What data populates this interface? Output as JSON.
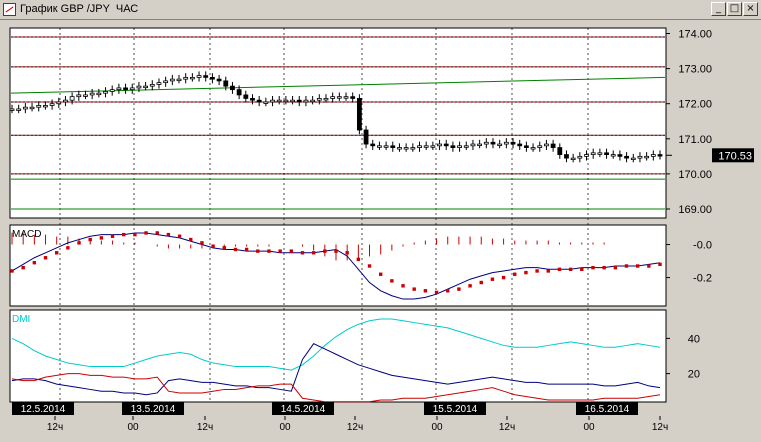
{
  "window": {
    "title": "График GBP /JPY  ЧАС",
    "icon": "chart-icon",
    "buttons": [
      {
        "name": "minimize",
        "glyph": "_"
      },
      {
        "name": "maximize",
        "glyph": "□"
      },
      {
        "name": "close",
        "glyph": "×"
      }
    ]
  },
  "price_panel": {
    "current_price_label": "170.53",
    "y_ticks": [
      "174.00",
      "173.00",
      "172.00",
      "171.00",
      "170.00",
      "169.00"
    ]
  },
  "macd_panel": {
    "title": "MACD",
    "y_ticks": [
      "-0.0",
      "-0.2"
    ]
  },
  "dmi_panel": {
    "title": "DMI",
    "y_ticks": [
      "40",
      "20"
    ]
  },
  "time_axis": {
    "date_labels": [
      "12.5.2014",
      "13.5.2014",
      "14.5.2014",
      "15.5.2014",
      "16.5.2014"
    ],
    "hour_labels": [
      "12ч",
      "00",
      "12ч",
      "00",
      "12ч",
      "00",
      "12ч",
      "00",
      "12ч"
    ]
  },
  "colors": {
    "background": "#ffffff",
    "frame": "#d4d0c8",
    "candles": "#000000",
    "resistance_lines": "#cc0000",
    "support_lines": "#008000",
    "macd_line": "#000080",
    "macd_signal": "#cc0000",
    "dmi_adx": "#00cccc",
    "dmi_plus": "#000080",
    "dmi_minus": "#cc0000"
  },
  "chart_data": [
    {
      "type": "line",
      "panel": "price",
      "ylim": [
        168.8,
        174.1
      ],
      "horizontal_levels_red": [
        173.9,
        173.05,
        172.05,
        171.1,
        170.0
      ],
      "horizontal_levels_green": [
        169.85,
        169.0
      ],
      "trendline_green": {
        "start": 172.3,
        "end": 172.75
      },
      "close": [
        171.85,
        171.85,
        171.9,
        171.9,
        171.95,
        171.95,
        172.0,
        172.05,
        172.1,
        172.2,
        172.25,
        172.25,
        172.3,
        172.3,
        172.35,
        172.4,
        172.45,
        172.4,
        172.45,
        172.5,
        172.5,
        172.55,
        172.6,
        172.65,
        172.7,
        172.7,
        172.75,
        172.75,
        172.8,
        172.75,
        172.7,
        172.65,
        172.5,
        172.4,
        172.25,
        172.15,
        172.1,
        172.05,
        172.05,
        172.1,
        172.1,
        172.1,
        172.1,
        172.05,
        172.1,
        172.1,
        172.15,
        172.15,
        172.2,
        172.2,
        172.2,
        172.15,
        171.25,
        170.85,
        170.8,
        170.8,
        170.8,
        170.75,
        170.75,
        170.75,
        170.75,
        170.8,
        170.8,
        170.8,
        170.85,
        170.8,
        170.75,
        170.8,
        170.8,
        170.85,
        170.85,
        170.9,
        170.85,
        170.85,
        170.9,
        170.85,
        170.8,
        170.75,
        170.75,
        170.8,
        170.85,
        170.75,
        170.55,
        170.45,
        170.45,
        170.5,
        170.55,
        170.6,
        170.6,
        170.55,
        170.55,
        170.5,
        170.45,
        170.45,
        170.5,
        170.5,
        170.55,
        170.53
      ]
    },
    {
      "type": "line",
      "panel": "macd",
      "series": [
        {
          "values": [
            -0.16,
            -0.12,
            -0.08,
            -0.05,
            -0.02,
            0.01,
            0.03,
            0.05,
            0.06,
            0.06,
            0.06,
            0.07,
            0.07,
            0.06,
            0.05,
            0.04,
            0.02,
            0.0,
            -0.02,
            -0.03,
            -0.03,
            -0.04,
            -0.04,
            -0.04,
            -0.05,
            -0.05,
            -0.05,
            -0.05,
            -0.04,
            -0.03,
            -0.07,
            -0.15,
            -0.23,
            -0.28,
            -0.31,
            -0.33,
            -0.33,
            -0.32,
            -0.3,
            -0.27,
            -0.24,
            -0.21,
            -0.19,
            -0.17,
            -0.16,
            -0.15,
            -0.14,
            -0.14,
            -0.15,
            -0.15,
            -0.15,
            -0.14,
            -0.14,
            -0.14,
            -0.13,
            -0.13,
            -0.13,
            -0.12,
            -0.11
          ]
        },
        {
          "values": [
            -0.16,
            -0.14,
            -0.11,
            -0.08,
            -0.05,
            -0.02,
            0.01,
            0.03,
            0.04,
            0.05,
            0.06,
            0.06,
            0.07,
            0.07,
            0.06,
            0.05,
            0.03,
            0.01,
            -0.01,
            -0.02,
            -0.03,
            -0.03,
            -0.04,
            -0.04,
            -0.04,
            -0.04,
            -0.05,
            -0.05,
            -0.04,
            -0.04,
            -0.05,
            -0.09,
            -0.13,
            -0.18,
            -0.22,
            -0.25,
            -0.27,
            -0.28,
            -0.29,
            -0.28,
            -0.27,
            -0.25,
            -0.23,
            -0.21,
            -0.2,
            -0.18,
            -0.17,
            -0.16,
            -0.16,
            -0.15,
            -0.15,
            -0.15,
            -0.14,
            -0.14,
            -0.14,
            -0.13,
            -0.13,
            -0.13,
            -0.12
          ]
        },
        {
          "values": [
            0.06,
            0.06,
            0.05,
            0.05,
            0.04,
            0.04,
            0.03,
            0.03,
            0.02,
            0.02,
            0.01,
            0.01,
            0.0,
            -0.01,
            -0.02,
            -0.02,
            -0.02,
            -0.02,
            -0.02,
            -0.02,
            -0.01,
            -0.01,
            -0.01,
            -0.01,
            0.0,
            0.0,
            -0.01,
            -0.03,
            -0.06,
            -0.08,
            -0.08,
            -0.07,
            -0.06,
            -0.05,
            -0.03,
            -0.01,
            0.01,
            0.02,
            0.03,
            0.04,
            0.04,
            0.04,
            0.04,
            0.03,
            0.03,
            0.02,
            0.02,
            0.02,
            0.02,
            0.01,
            0.01,
            0.01,
            0.01,
            0.01,
            0.0,
            0.0,
            0.0,
            0.0,
            0.0
          ]
        }
      ]
    },
    {
      "type": "line",
      "panel": "dmi",
      "series": [
        {
          "values": [
            40,
            37,
            33,
            30,
            28,
            26,
            25,
            24,
            24,
            24,
            24,
            26,
            28,
            30,
            31,
            32,
            31,
            28,
            26,
            25,
            24,
            24,
            24,
            24,
            23,
            22,
            25,
            30,
            36,
            41,
            45,
            48,
            50,
            51,
            51,
            50,
            49,
            48,
            47,
            46,
            44,
            42,
            40,
            38,
            36,
            35,
            35,
            35,
            36,
            37,
            38,
            37,
            36,
            35,
            35,
            36,
            37,
            36,
            35
          ]
        },
        {
          "values": [
            16,
            17,
            17,
            16,
            14,
            13,
            12,
            11,
            10,
            10,
            9,
            9,
            8,
            9,
            16,
            17,
            16,
            15,
            15,
            14,
            13,
            13,
            12,
            12,
            11,
            10,
            28,
            37,
            34,
            31,
            28,
            25,
            23,
            21,
            19,
            18,
            17,
            16,
            15,
            14,
            15,
            16,
            17,
            18,
            17,
            16,
            15,
            15,
            14,
            14,
            14,
            14,
            14,
            13,
            13,
            14,
            15,
            13,
            12
          ]
        },
        {
          "values": [
            17,
            16,
            16,
            18,
            19,
            20,
            20,
            19,
            19,
            18,
            18,
            17,
            17,
            18,
            10,
            9,
            9,
            9,
            10,
            11,
            11,
            12,
            13,
            13,
            14,
            14,
            6,
            5,
            4,
            4,
            4,
            4,
            4,
            5,
            5,
            6,
            6,
            6,
            7,
            8,
            9,
            10,
            11,
            12,
            10,
            8,
            7,
            6,
            5,
            5,
            5,
            5,
            5,
            6,
            6,
            6,
            6,
            7,
            8
          ]
        }
      ],
      "ylim": [
        5,
        55
      ]
    }
  ]
}
